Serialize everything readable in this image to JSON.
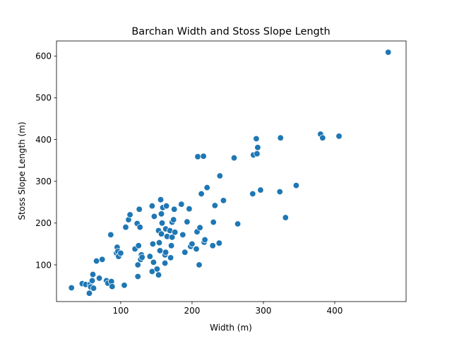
{
  "chart_data": {
    "type": "scatter",
    "title": "Barchan Width and Stoss Slope Length",
    "xlabel": "Width (m)",
    "ylabel": "Stoss Slope Length (m)",
    "xlim": [
      10,
      500
    ],
    "ylim": [
      12,
      636
    ],
    "xticks": [
      100,
      200,
      300,
      400
    ],
    "yticks": [
      100,
      200,
      300,
      400,
      500,
      600
    ],
    "grid": false,
    "color": "#1f77b4",
    "points": [
      [
        31,
        45
      ],
      [
        46,
        55
      ],
      [
        51,
        53
      ],
      [
        56,
        32
      ],
      [
        57,
        53
      ],
      [
        58,
        47
      ],
      [
        60,
        62
      ],
      [
        61,
        77
      ],
      [
        62,
        44
      ],
      [
        66,
        109
      ],
      [
        70,
        68
      ],
      [
        74,
        113
      ],
      [
        80,
        62
      ],
      [
        82,
        56
      ],
      [
        86,
        172
      ],
      [
        87,
        60
      ],
      [
        88,
        48
      ],
      [
        94,
        128
      ],
      [
        95,
        142
      ],
      [
        96,
        132
      ],
      [
        97,
        120
      ],
      [
        100,
        128
      ],
      [
        105,
        51
      ],
      [
        107,
        190
      ],
      [
        111,
        208
      ],
      [
        113,
        220
      ],
      [
        120,
        138
      ],
      [
        123,
        199
      ],
      [
        124,
        72
      ],
      [
        124,
        100
      ],
      [
        125,
        146
      ],
      [
        126,
        233
      ],
      [
        127,
        190
      ],
      [
        128,
        113
      ],
      [
        129,
        124
      ],
      [
        130,
        118
      ],
      [
        141,
        120
      ],
      [
        144,
        241
      ],
      [
        144,
        84
      ],
      [
        145,
        150
      ],
      [
        146,
        106
      ],
      [
        147,
        216
      ],
      [
        151,
        90
      ],
      [
        153,
        182
      ],
      [
        153,
        76
      ],
      [
        154,
        153
      ],
      [
        155,
        134
      ],
      [
        156,
        256
      ],
      [
        157,
        222
      ],
      [
        157,
        174
      ],
      [
        158,
        200
      ],
      [
        159,
        237
      ],
      [
        162,
        104
      ],
      [
        162,
        124
      ],
      [
        163,
        130
      ],
      [
        163,
        186
      ],
      [
        164,
        241
      ],
      [
        165,
        168
      ],
      [
        169,
        182
      ],
      [
        170,
        117
      ],
      [
        171,
        146
      ],
      [
        172,
        202
      ],
      [
        172,
        166
      ],
      [
        174,
        208
      ],
      [
        175,
        233
      ],
      [
        176,
        178
      ],
      [
        185,
        245
      ],
      [
        187,
        172
      ],
      [
        190,
        130
      ],
      [
        193,
        203
      ],
      [
        196,
        234
      ],
      [
        198,
        144
      ],
      [
        200,
        150
      ],
      [
        206,
        138
      ],
      [
        207,
        179
      ],
      [
        208,
        359
      ],
      [
        210,
        100
      ],
      [
        211,
        189
      ],
      [
        213,
        270
      ],
      [
        216,
        360
      ],
      [
        217,
        154
      ],
      [
        218,
        160
      ],
      [
        221,
        285
      ],
      [
        229,
        146
      ],
      [
        230,
        202
      ],
      [
        232,
        242
      ],
      [
        238,
        152
      ],
      [
        239,
        313
      ],
      [
        244,
        254
      ],
      [
        259,
        356
      ],
      [
        264,
        198
      ],
      [
        285,
        270
      ],
      [
        286,
        363
      ],
      [
        290,
        402
      ],
      [
        291,
        366
      ],
      [
        292,
        381
      ],
      [
        296,
        279
      ],
      [
        323,
        275
      ],
      [
        324,
        404
      ],
      [
        331,
        213
      ],
      [
        346,
        290
      ],
      [
        380,
        413
      ],
      [
        383,
        404
      ],
      [
        406,
        408
      ],
      [
        475,
        609
      ]
    ]
  }
}
